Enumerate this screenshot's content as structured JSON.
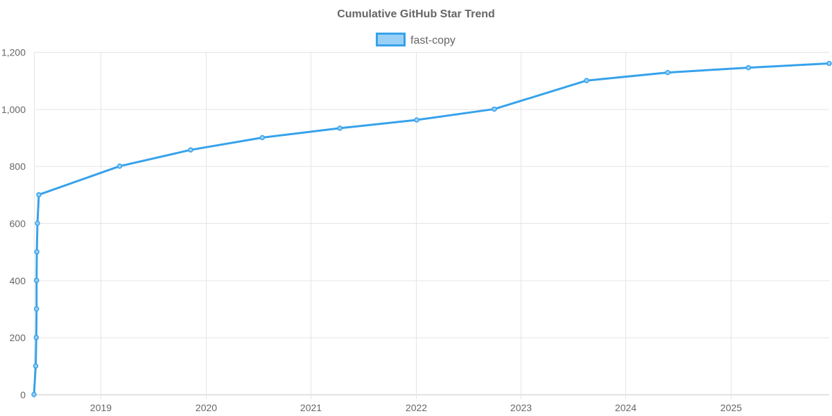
{
  "chart_data": {
    "type": "line",
    "title": "Cumulative GitHub Star Trend",
    "xlabel": "",
    "ylabel": "",
    "legend_position": "top",
    "grid": true,
    "ylim": [
      0,
      1200
    ],
    "xlim": [
      "2018-05-14",
      "2025-12-09"
    ],
    "y_ticks": [
      "0",
      "200",
      "400",
      "600",
      "800",
      "1,000",
      "1,200"
    ],
    "x_ticks": [
      "2019",
      "2020",
      "2021",
      "2022",
      "2023",
      "2024",
      "2025"
    ],
    "series": [
      {
        "name": "fast-copy",
        "color": "#36a2eb",
        "fill_color": "#9ad0f5",
        "points": [
          {
            "x": "2018-05-14",
            "y": 0
          },
          {
            "x": "2018-05-20",
            "y": 100
          },
          {
            "x": "2018-05-22",
            "y": 200
          },
          {
            "x": "2018-05-23",
            "y": 300
          },
          {
            "x": "2018-05-23",
            "y": 400
          },
          {
            "x": "2018-05-24",
            "y": 500
          },
          {
            "x": "2018-05-26",
            "y": 600
          },
          {
            "x": "2018-05-31",
            "y": 700
          },
          {
            "x": "2019-03-08",
            "y": 800
          },
          {
            "x": "2019-11-10",
            "y": 857
          },
          {
            "x": "2020-07-16",
            "y": 900
          },
          {
            "x": "2021-04-12",
            "y": 933
          },
          {
            "x": "2022-01-04",
            "y": 962
          },
          {
            "x": "2022-10-01",
            "y": 1000
          },
          {
            "x": "2023-08-18",
            "y": 1100
          },
          {
            "x": "2024-05-26",
            "y": 1128
          },
          {
            "x": "2025-03-03",
            "y": 1145
          },
          {
            "x": "2025-12-09",
            "y": 1160
          }
        ]
      }
    ]
  }
}
